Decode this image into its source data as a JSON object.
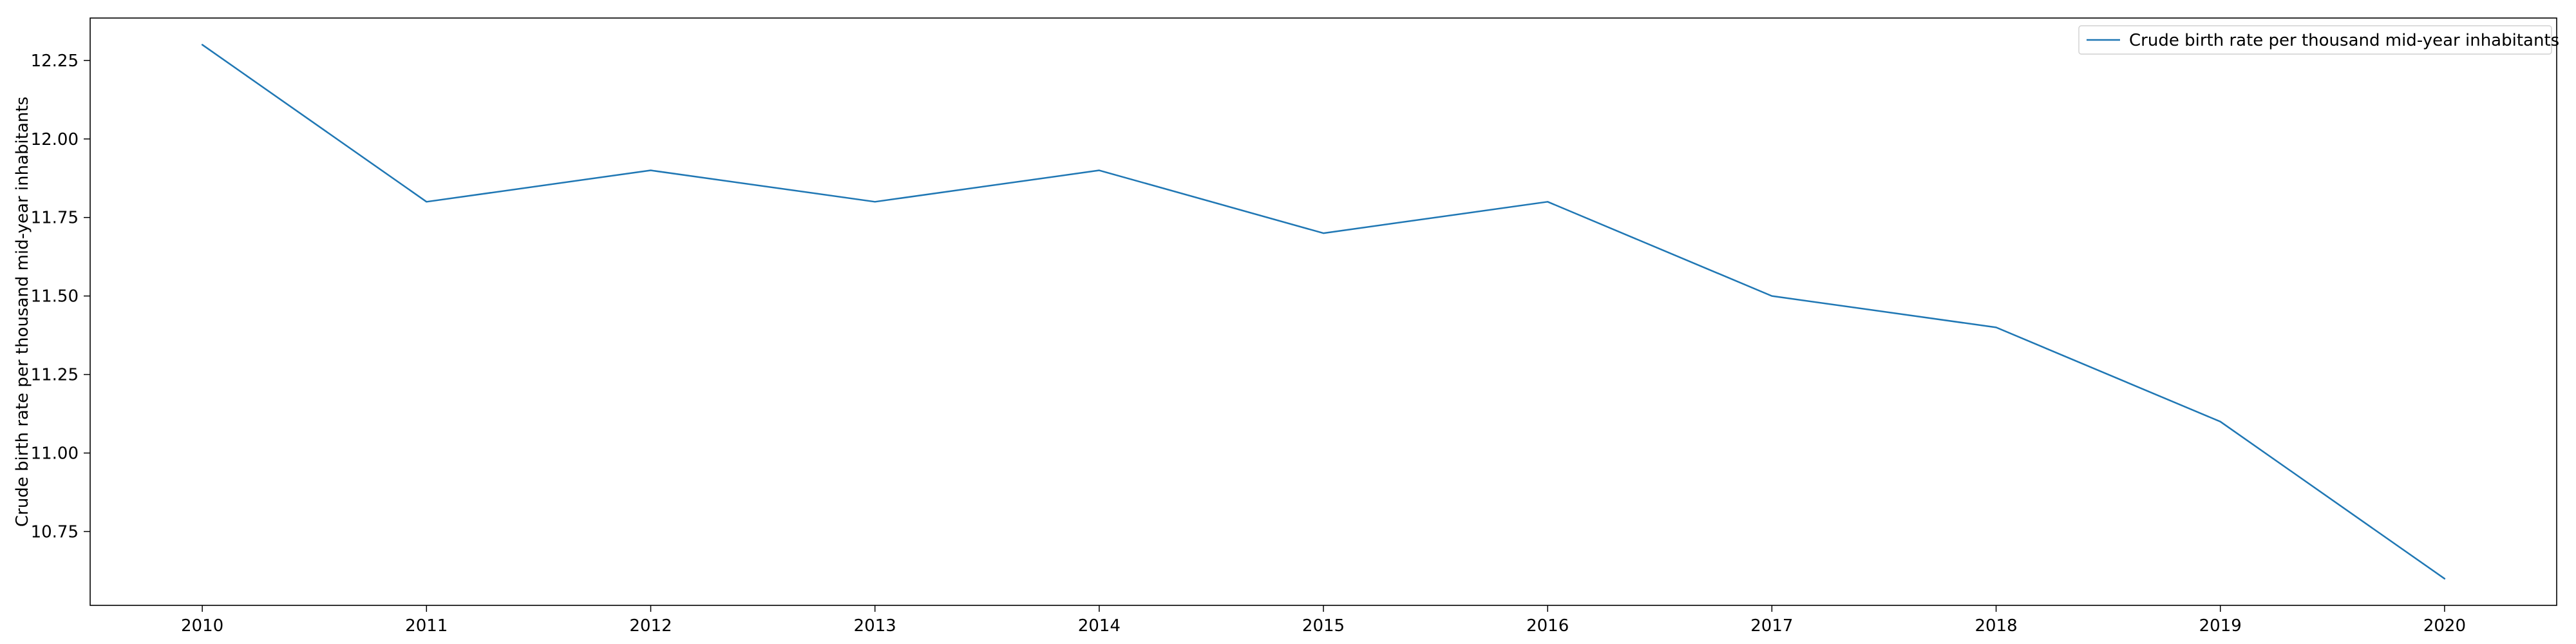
{
  "chart_data": {
    "type": "line",
    "title": "",
    "xlabel": "",
    "ylabel": "Crude birth rate per thousand mid-year inhabitants",
    "x": [
      "2010",
      "2011",
      "2012",
      "2013",
      "2014",
      "2015",
      "2016",
      "2017",
      "2018",
      "2019",
      "2020"
    ],
    "series": [
      {
        "name": "Crude birth rate per thousand mid-year inhabitants",
        "color": "#1f77b4",
        "values": [
          12.3,
          11.8,
          11.9,
          11.8,
          11.9,
          11.7,
          11.8,
          11.5,
          11.4,
          11.1,
          10.6
        ]
      }
    ],
    "xlim": [
      2009.5,
      2020.5
    ],
    "ylim": [
      10.515,
      12.385
    ],
    "yticks": [
      "10.75",
      "11.00",
      "11.25",
      "11.50",
      "11.75",
      "12.00",
      "12.25"
    ],
    "grid": false,
    "legend_position": "top-right"
  }
}
